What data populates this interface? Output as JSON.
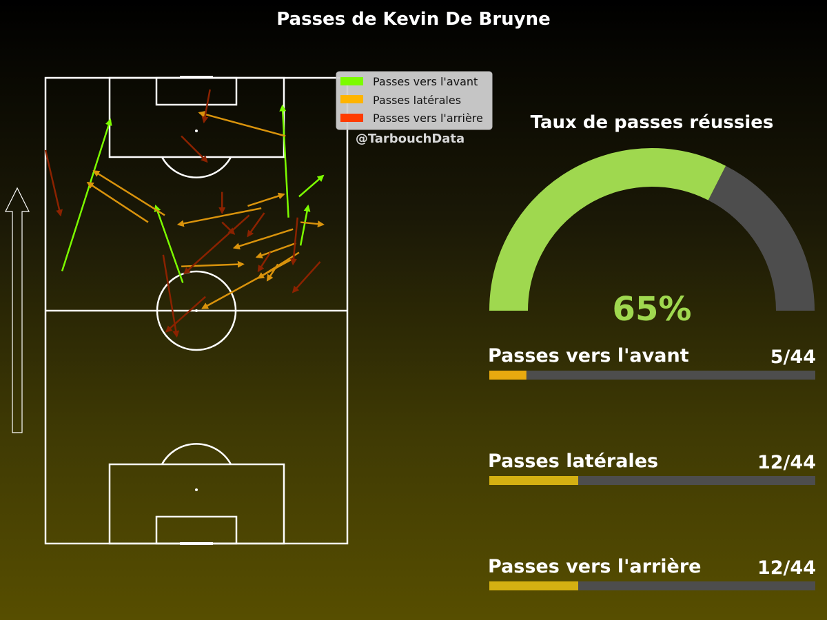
{
  "title": "Passes de Kevin De Bruyne",
  "watermark": "@TarbouchData",
  "legend": {
    "placement": "top-right of pitch",
    "items": [
      {
        "key": "forward",
        "label": "Passes vers l'avant",
        "color": "#7cfc00"
      },
      {
        "key": "lateral",
        "label": "Passes latérales",
        "color": "#ffb400"
      },
      {
        "key": "backward",
        "label": "Passes vers l'arrière",
        "color": "#ff3c00"
      }
    ]
  },
  "gauge": {
    "title": "Taux de passes réussies",
    "percent": 65,
    "label": "65%",
    "fill_color": "#9fd84f",
    "track_color": "#4d4d4d"
  },
  "bars": [
    {
      "label": "Passes vers l'avant",
      "value_text": "5/44",
      "value": 5,
      "total": 44,
      "color": "#e8a90f"
    },
    {
      "label": "Passes latérales",
      "value_text": "12/44",
      "value": 12,
      "total": 44,
      "color": "#d4b012"
    },
    {
      "label": "Passes vers l'arrière",
      "value_text": "12/44",
      "value": 12,
      "total": 44,
      "color": "#d4b012"
    }
  ],
  "chart_data": {
    "type": "pass-map",
    "pitch": "vertical, attacking upward",
    "units": "pitch coordinates, x 0-100 (left to right), y 0-100 (own goal to opponent goal)",
    "passes": [
      {
        "type": "forward",
        "from": [
          5.5,
          58.5
        ],
        "to": [
          21.5,
          91
        ]
      },
      {
        "type": "forward",
        "from": [
          45.5,
          56
        ],
        "to": [
          36.5,
          72.5
        ]
      },
      {
        "type": "forward",
        "from": [
          80.5,
          70
        ],
        "to": [
          78.5,
          94
        ]
      },
      {
        "type": "forward",
        "from": [
          84,
          74.5
        ],
        "to": [
          92,
          79
        ]
      },
      {
        "type": "forward",
        "from": [
          84.5,
          64
        ],
        "to": [
          87,
          72.5
        ]
      },
      {
        "type": "lateral",
        "from": [
          79.5,
          87.5
        ],
        "to": [
          51,
          92.5
        ]
      },
      {
        "type": "lateral",
        "from": [
          39.5,
          70.5
        ],
        "to": [
          16,
          80
        ]
      },
      {
        "type": "lateral",
        "from": [
          34,
          69
        ],
        "to": [
          14,
          77.5
        ]
      },
      {
        "type": "lateral",
        "from": [
          71.5,
          72
        ],
        "to": [
          44,
          68.5
        ]
      },
      {
        "type": "lateral",
        "from": [
          67,
          72.5
        ],
        "to": [
          79,
          75
        ]
      },
      {
        "type": "lateral",
        "from": [
          84.5,
          69
        ],
        "to": [
          92,
          68.5
        ]
      },
      {
        "type": "lateral",
        "from": [
          82,
          67.5
        ],
        "to": [
          62.5,
          63.5
        ]
      },
      {
        "type": "lateral",
        "from": [
          83,
          64.5
        ],
        "to": [
          70,
          61.5
        ]
      },
      {
        "type": "lateral",
        "from": [
          45,
          59.5
        ],
        "to": [
          65.5,
          60
        ]
      },
      {
        "type": "lateral",
        "from": [
          84,
          62.5
        ],
        "to": [
          70.5,
          57
        ]
      },
      {
        "type": "lateral",
        "from": [
          81.5,
          61
        ],
        "to": [
          52,
          50.5
        ]
      },
      {
        "type": "lateral",
        "from": [
          77,
          60
        ],
        "to": [
          73.5,
          56.5
        ]
      },
      {
        "type": "backward",
        "from": [
          54.5,
          97.5
        ],
        "to": [
          52.5,
          90.5
        ]
      },
      {
        "type": "backward",
        "from": [
          45,
          87.5
        ],
        "to": [
          53.5,
          82
        ]
      },
      {
        "type": "backward",
        "from": [
          0,
          84.5
        ],
        "to": [
          5,
          70.5
        ]
      },
      {
        "type": "backward",
        "from": [
          58.5,
          75.5
        ],
        "to": [
          58.5,
          71
        ]
      },
      {
        "type": "backward",
        "from": [
          58.5,
          69
        ],
        "to": [
          62.5,
          66.5
        ]
      },
      {
        "type": "backward",
        "from": [
          72.5,
          71
        ],
        "to": [
          67,
          66
        ]
      },
      {
        "type": "backward",
        "from": [
          67.5,
          70.5
        ],
        "to": [
          46,
          58
        ]
      },
      {
        "type": "backward",
        "from": [
          74.5,
          62.5
        ],
        "to": [
          70.5,
          58.5
        ]
      },
      {
        "type": "backward",
        "from": [
          83.5,
          70
        ],
        "to": [
          82,
          60
        ]
      },
      {
        "type": "backward",
        "from": [
          91,
          60.5
        ],
        "to": [
          82,
          54
        ]
      },
      {
        "type": "backward",
        "from": [
          53,
          53
        ],
        "to": [
          40,
          45.5
        ]
      },
      {
        "type": "backward",
        "from": [
          39,
          62
        ],
        "to": [
          43.5,
          44.5
        ]
      }
    ]
  }
}
